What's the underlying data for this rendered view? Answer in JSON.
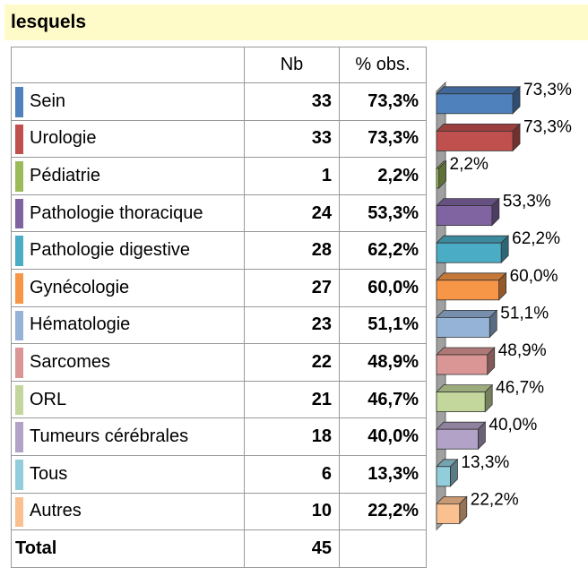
{
  "header": {
    "title": "lesquels"
  },
  "table": {
    "columns": [
      "Nb",
      "% obs."
    ],
    "rows": [
      {
        "label": "Sein",
        "color": "#4f81bd",
        "nb": 33,
        "pct": 73.3,
        "pct_label": "73,3%"
      },
      {
        "label": "Urologie",
        "color": "#c0504d",
        "nb": 33,
        "pct": 73.3,
        "pct_label": "73,3%"
      },
      {
        "label": "Pédiatrie",
        "color": "#9bbb59",
        "nb": 1,
        "pct": 2.2,
        "pct_label": "2,2%"
      },
      {
        "label": "Pathologie thoracique",
        "color": "#8064a2",
        "nb": 24,
        "pct": 53.3,
        "pct_label": "53,3%"
      },
      {
        "label": "Pathologie digestive",
        "color": "#4bacc6",
        "nb": 28,
        "pct": 62.2,
        "pct_label": "62,2%"
      },
      {
        "label": "Gynécologie",
        "color": "#f79646",
        "nb": 27,
        "pct": 60.0,
        "pct_label": "60,0%"
      },
      {
        "label": "Hématologie",
        "color": "#95b3d7",
        "nb": 23,
        "pct": 51.1,
        "pct_label": "51,1%"
      },
      {
        "label": "Sarcomes",
        "color": "#d99694",
        "nb": 22,
        "pct": 48.9,
        "pct_label": "48,9%"
      },
      {
        "label": "ORL",
        "color": "#c3d69b",
        "nb": 21,
        "pct": 46.7,
        "pct_label": "46,7%"
      },
      {
        "label": "Tumeurs cérébrales",
        "color": "#b2a2c7",
        "nb": 18,
        "pct": 40.0,
        "pct_label": "40,0%"
      },
      {
        "label": "Tous",
        "color": "#92cddc",
        "nb": 6,
        "pct": 13.3,
        "pct_label": "13,3%"
      },
      {
        "label": "Autres",
        "color": "#fac090",
        "nb": 10,
        "pct": 22.2,
        "pct_label": "22,2%"
      }
    ],
    "total": {
      "label": "Total",
      "nb": 45
    }
  }
}
